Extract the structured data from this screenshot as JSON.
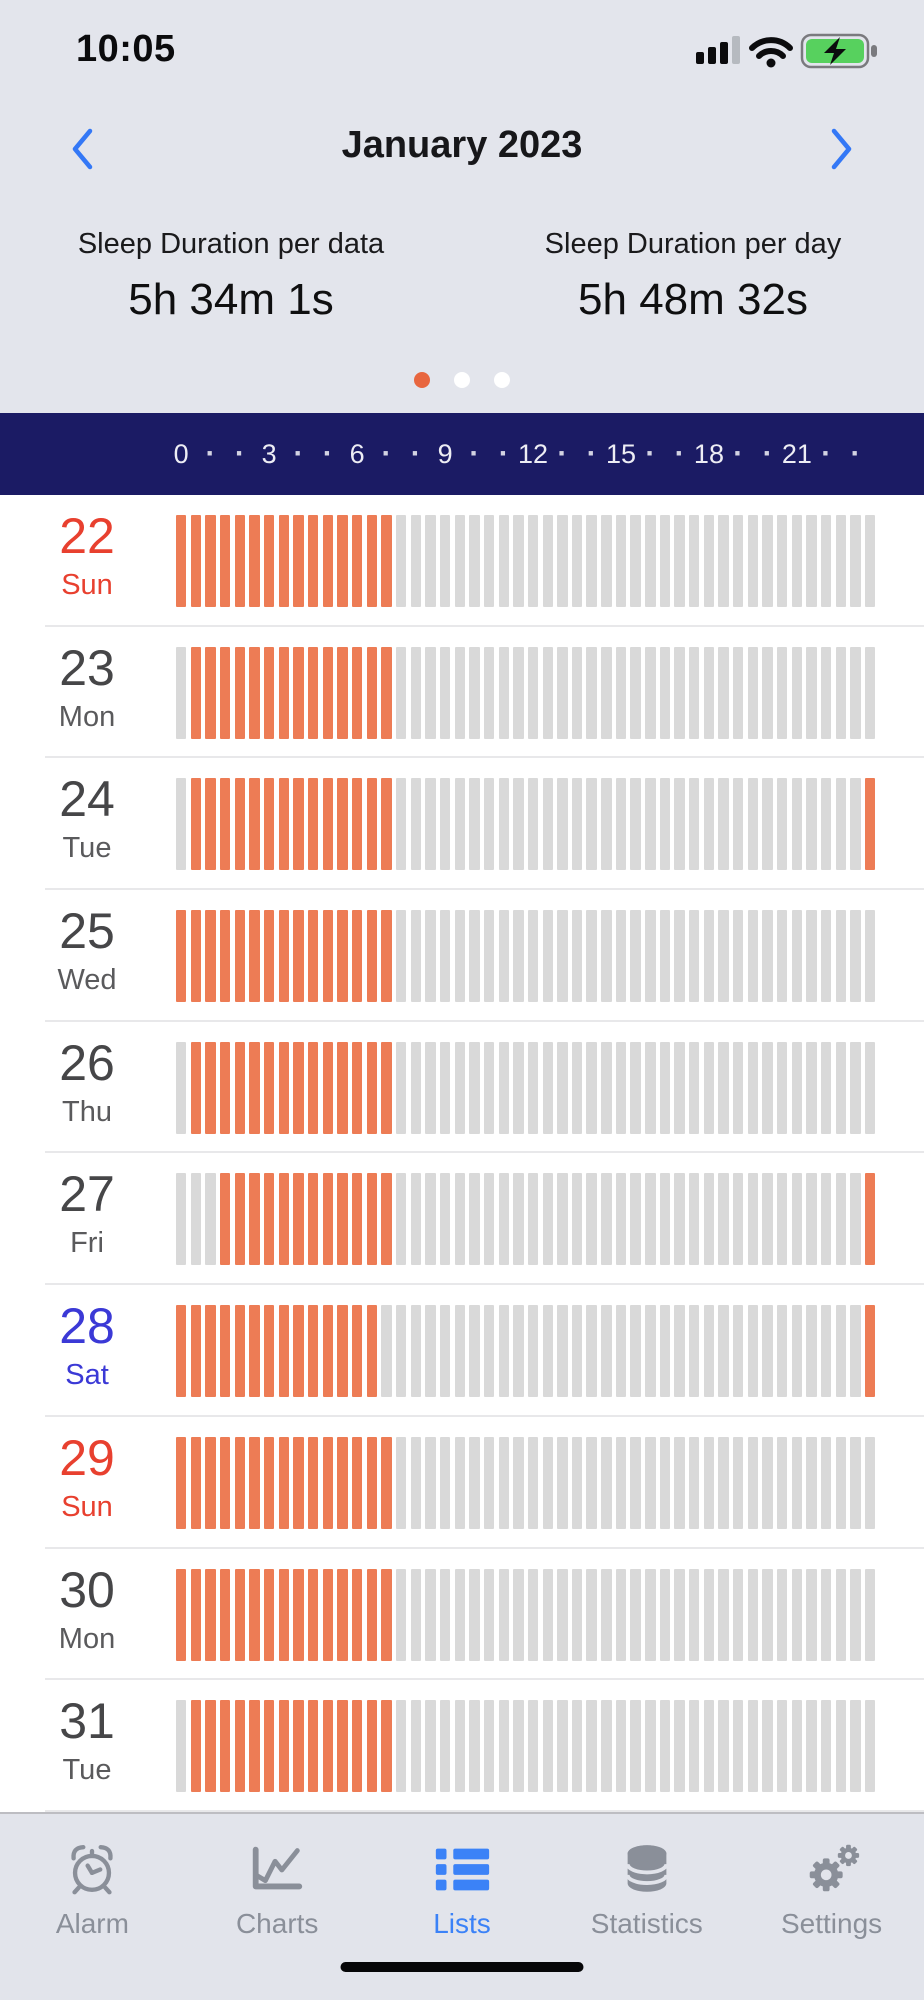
{
  "status_bar": {
    "time": "10:05",
    "icons": [
      "cellular-signal-icon",
      "wifi-icon",
      "battery-charging-icon"
    ]
  },
  "month_nav": {
    "title": "January 2023"
  },
  "summary": {
    "left": {
      "label": "Sleep Duration per data",
      "value": "5h 34m 1s"
    },
    "right": {
      "label": "Sleep Duration per day",
      "value": "5h 48m 32s"
    }
  },
  "pager": {
    "count": 3,
    "active_index": 0
  },
  "chart_data": {
    "type": "timeline-bars",
    "description": "Per-day sleep timeline; 48 half-hour bars per day (0h-24h); orange = asleep, gray = awake",
    "hours_axis": {
      "labels": [
        "0",
        "3",
        "6",
        "9",
        "12",
        "15",
        "18",
        "21"
      ],
      "label_interval_hours": 3,
      "tick_glyph": "·",
      "bars_per_day": 48,
      "minutes_per_bar": 30
    },
    "days": [
      {
        "date": 22,
        "weekday": "Sun",
        "color_role": "sunday",
        "sleep_bars": [
          [
            0,
            14
          ]
        ]
      },
      {
        "date": 23,
        "weekday": "Mon",
        "color_role": "default",
        "sleep_bars": [
          [
            1,
            14
          ]
        ]
      },
      {
        "date": 24,
        "weekday": "Tue",
        "color_role": "default",
        "sleep_bars": [
          [
            1,
            14
          ],
          [
            47,
            47
          ]
        ]
      },
      {
        "date": 25,
        "weekday": "Wed",
        "color_role": "default",
        "sleep_bars": [
          [
            0,
            14
          ]
        ]
      },
      {
        "date": 26,
        "weekday": "Thu",
        "color_role": "default",
        "sleep_bars": [
          [
            1,
            14
          ]
        ]
      },
      {
        "date": 27,
        "weekday": "Fri",
        "color_role": "default",
        "sleep_bars": [
          [
            3,
            14
          ],
          [
            47,
            47
          ]
        ]
      },
      {
        "date": 28,
        "weekday": "Sat",
        "color_role": "saturday",
        "sleep_bars": [
          [
            0,
            13
          ],
          [
            47,
            47
          ]
        ]
      },
      {
        "date": 29,
        "weekday": "Sun",
        "color_role": "sunday",
        "sleep_bars": [
          [
            0,
            14
          ]
        ]
      },
      {
        "date": 30,
        "weekday": "Mon",
        "color_role": "default",
        "sleep_bars": [
          [
            0,
            14
          ]
        ]
      },
      {
        "date": 31,
        "weekday": "Tue",
        "color_role": "default",
        "sleep_bars": [
          [
            1,
            14
          ]
        ]
      }
    ]
  },
  "tab_bar": {
    "items": [
      {
        "id": "alarm",
        "label": "Alarm",
        "icon": "alarm-clock-icon",
        "active": false
      },
      {
        "id": "charts",
        "label": "Charts",
        "icon": "line-chart-icon",
        "active": false
      },
      {
        "id": "lists",
        "label": "Lists",
        "icon": "list-icon",
        "active": true
      },
      {
        "id": "statistics",
        "label": "Statistics",
        "icon": "database-icon",
        "active": false
      },
      {
        "id": "settings",
        "label": "Settings",
        "icon": "gears-icon",
        "active": false
      }
    ]
  },
  "colors": {
    "background_top": "#E3E5EC",
    "hours_bar_navy": "#1B1B64",
    "sleep_bar": "#ED7C55",
    "awake_bar": "#D9D9D9",
    "sunday": "#E8402F",
    "saturday": "#3B39D6",
    "day_default_number": "#464648",
    "day_default_weekday": "#5A5A5C",
    "accent_blue": "#3478F6",
    "tab_active_blue": "#3B82F7",
    "tab_inactive_gray": "#8A8F99",
    "pager_active_dot": "#E8663F",
    "battery_green": "#57D15E"
  }
}
